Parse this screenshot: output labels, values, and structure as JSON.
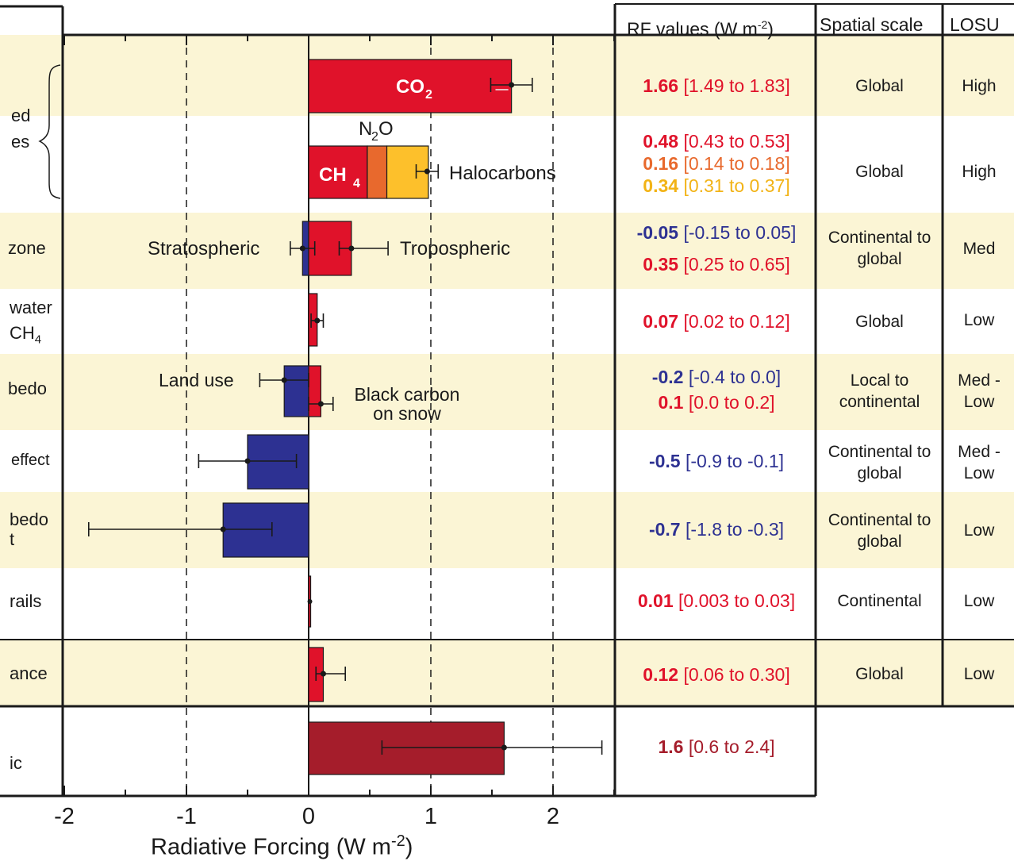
{
  "chart_data": {
    "type": "bar",
    "orientation": "horizontal",
    "xlabel": "Radiative Forcing  (W m",
    "xlabel_sup": "-2",
    "xlabel_close": ")",
    "xlim": [
      -2,
      2.5
    ],
    "x_ticks": [
      "-2",
      "-1",
      "0",
      "1",
      "2"
    ],
    "grid": "dashed vertical lines at -1, 1, 2",
    "row_labels": [
      "ed",
      "es",
      "zone",
      "water",
      "CH",
      "bedo",
      "effect",
      "bedo",
      "t",
      "rails",
      "ance",
      "ic"
    ],
    "row_label_subscript": "4",
    "colors": {
      "positive": "#e0122a",
      "negative": "#2d3192",
      "n2o": "#e8692d",
      "halocarbons": "#fdc02b",
      "total": "#a51d2b",
      "band": "#fbf5d5"
    },
    "series": [
      {
        "key": "co2",
        "label": "CO",
        "label_sub": "2",
        "value": 1.66,
        "range": [
          1.49,
          1.83
        ]
      },
      {
        "key": "ch4",
        "label": "CH",
        "label_sub": "4",
        "value": 0.48,
        "range": [
          0.43,
          0.53
        ]
      },
      {
        "key": "n2o",
        "label": "N",
        "label_sub": "2",
        "label_tail": "O",
        "value": 0.16,
        "range": [
          0.14,
          0.18
        ]
      },
      {
        "key": "halocarbons",
        "label": "Halocarbons",
        "value": 0.34,
        "range": [
          0.31,
          0.37
        ]
      },
      {
        "key": "ozone_strat",
        "label": "Stratospheric",
        "value": -0.05,
        "range": [
          -0.15,
          0.05
        ]
      },
      {
        "key": "ozone_trop",
        "label": "Tropospheric",
        "value": 0.35,
        "range": [
          0.25,
          0.65
        ]
      },
      {
        "key": "strat_water",
        "value": 0.07,
        "range": [
          0.02,
          0.12
        ]
      },
      {
        "key": "land_use",
        "label": "Land use",
        "value": -0.2,
        "range": [
          -0.4,
          0.0
        ]
      },
      {
        "key": "black_carbon",
        "label": "Black carbon",
        "label2": "on snow",
        "value": 0.1,
        "range": [
          0.0,
          0.2
        ]
      },
      {
        "key": "aerosol_direct",
        "value": -0.5,
        "range": [
          -0.9,
          -0.1
        ]
      },
      {
        "key": "cloud_albedo",
        "value": -0.7,
        "range": [
          -1.8,
          -0.3
        ]
      },
      {
        "key": "contrails",
        "value": 0.01,
        "range": [
          0.003,
          0.03
        ]
      },
      {
        "key": "solar",
        "value": 0.12,
        "range": [
          0.06,
          0.3
        ]
      },
      {
        "key": "total",
        "value": 1.6,
        "range": [
          0.6,
          2.4
        ]
      }
    ]
  },
  "table": {
    "header": {
      "rf": "RF values (W m",
      "rf_sup": "-2",
      "rf_close": ")",
      "scale": "Spatial scale",
      "losu": "LOSU"
    },
    "rows": [
      {
        "rf": [
          {
            "value": "1.66",
            "range": "[1.49 to 1.83]",
            "color": "#e0122a"
          }
        ],
        "scale": "Global",
        "losu": "High"
      },
      {
        "rf": [
          {
            "value": "0.48",
            "range": "[0.43 to 0.53]",
            "color": "#e0122a"
          },
          {
            "value": "0.16",
            "range": "[0.14 to 0.18]",
            "color": "#e8692d"
          },
          {
            "value": "0.34",
            "range": "[0.31 to 0.37]",
            "color": "#f2b316"
          }
        ],
        "scale": "Global",
        "losu": "High"
      },
      {
        "rf": [
          {
            "value": "-0.05",
            "range": "[-0.15 to 0.05]",
            "color": "#2d3192"
          },
          {
            "value": "0.35",
            "range": "[0.25 to 0.65]",
            "color": "#e0122a"
          }
        ],
        "scale": "Continental to global",
        "losu": "Med"
      },
      {
        "rf": [
          {
            "value": "0.07",
            "range": "[0.02 to 0.12]",
            "color": "#e0122a"
          }
        ],
        "scale": "Global",
        "losu": "Low"
      },
      {
        "rf": [
          {
            "value": "-0.2",
            "range": "[-0.4 to 0.0]",
            "color": "#2d3192"
          },
          {
            "value": "0.1",
            "range": "[0.0 to 0.2]",
            "color": "#e0122a"
          }
        ],
        "scale": "Local to continental",
        "losu": "Med - Low"
      },
      {
        "rf": [
          {
            "value": "-0.5",
            "range": "[-0.9 to -0.1]",
            "color": "#2d3192"
          }
        ],
        "scale": "Continental to global",
        "losu": "Med - Low"
      },
      {
        "rf": [
          {
            "value": "-0.7",
            "range": "[-1.8 to -0.3]",
            "color": "#2d3192"
          }
        ],
        "scale": "Continental to global",
        "losu": "Low"
      },
      {
        "rf": [
          {
            "value": "0.01",
            "range": "[0.003 to 0.03]",
            "color": "#e0122a"
          }
        ],
        "scale": "Continental",
        "losu": "Low"
      },
      {
        "rf": [
          {
            "value": "0.12",
            "range": "[0.06 to 0.30]",
            "color": "#e0122a"
          }
        ],
        "scale": "Global",
        "losu": "Low"
      },
      {
        "rf": [
          {
            "value": "1.6",
            "range": "[0.6 to 2.4]",
            "color": "#a51d2b"
          }
        ]
      }
    ]
  }
}
